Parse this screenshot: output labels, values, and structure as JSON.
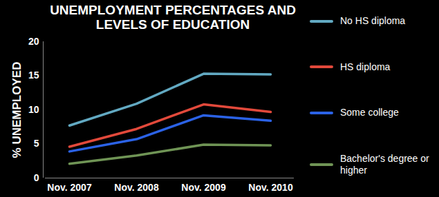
{
  "chart_data": {
    "type": "line",
    "title": "UNEMPLOYMENT PERCENTAGES AND LEVELS OF EDUCATION",
    "y_label": "% UNEMPLOYED",
    "categories": [
      "Nov. 2007",
      "Nov. 2008",
      "Nov. 2009",
      "Nov. 2010"
    ],
    "series": [
      {
        "name": "No HS diploma",
        "color": "#62a9c2",
        "values": [
          7.7,
          10.9,
          15.3,
          15.2
        ]
      },
      {
        "name": "HS diploma",
        "color": "#e2493b",
        "values": [
          4.6,
          7.2,
          10.8,
          9.7
        ]
      },
      {
        "name": "Some college",
        "color": "#2b62e6",
        "values": [
          3.9,
          5.7,
          9.2,
          8.4
        ]
      },
      {
        "name": "Bachelor's degree or higher",
        "color": "#6f9455",
        "values": [
          2.1,
          3.3,
          4.9,
          4.8
        ]
      }
    ],
    "ylim": [
      0,
      20
    ],
    "yticks": [
      0,
      5,
      10,
      15,
      20
    ],
    "grid": false,
    "legend": "right"
  }
}
